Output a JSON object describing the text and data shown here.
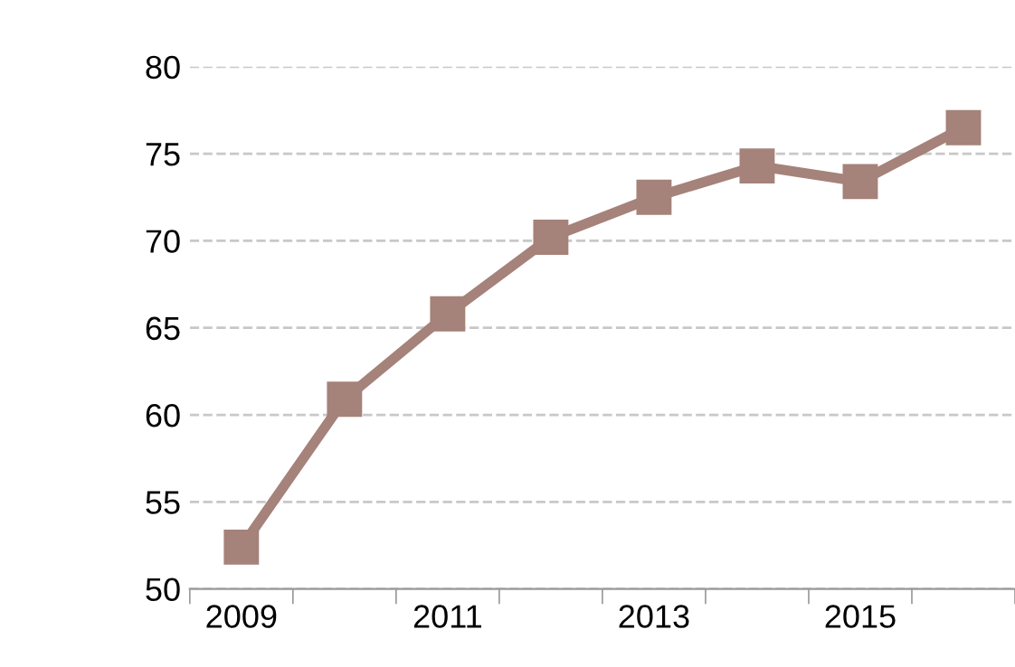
{
  "chart_data": {
    "type": "line",
    "categories": [
      "2009",
      null,
      "2011",
      null,
      "2013",
      null,
      "2015",
      null
    ],
    "series": [
      {
        "color": "#a5827a",
        "values": [
          52.4,
          60.9,
          65.8,
          70.2,
          72.5,
          74.3,
          73.4,
          76.5
        ]
      }
    ],
    "ylim": [
      50,
      80
    ],
    "yticks": [
      50,
      55,
      60,
      65,
      70,
      75,
      80
    ],
    "grid": "y",
    "marker": "square",
    "line_style": "solid",
    "legend": false
  }
}
